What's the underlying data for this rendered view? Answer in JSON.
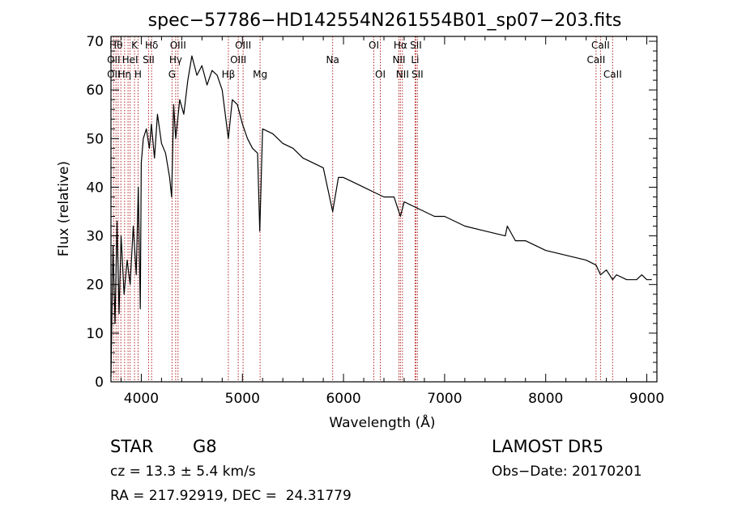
{
  "chart_data": {
    "type": "line",
    "title": "spec−57786−HD142554N261554B01_sp07−203.fits",
    "xlabel": "Wavelength (Å)",
    "ylabel": "Flux (relative)",
    "xlim": [
      3700,
      9100
    ],
    "ylim": [
      0,
      71
    ],
    "x_ticks": [
      4000,
      5000,
      6000,
      7000,
      8000,
      9000
    ],
    "x_tick_labels": [
      "4000",
      "5000",
      "6000",
      "7000",
      "8000",
      "9000"
    ],
    "y_ticks": [
      0,
      10,
      20,
      30,
      40,
      50,
      60,
      70
    ],
    "y_tick_labels": [
      "0",
      "10",
      "20",
      "30",
      "40",
      "50",
      "60",
      "70"
    ],
    "grid": false,
    "line_color": "#000000",
    "marker_color": "#b22222",
    "series": [
      {
        "x": [
          3700,
          3720,
          3740,
          3760,
          3780,
          3800,
          3830,
          3860,
          3890,
          3920,
          3950,
          3970,
          3990,
          4000,
          4020,
          4050,
          4080,
          4100,
          4130,
          4160,
          4200,
          4240,
          4280,
          4300,
          4320,
          4340,
          4380,
          4420,
          4460,
          4500,
          4550,
          4600,
          4650,
          4700,
          4750,
          4800,
          4861,
          4900,
          4950,
          5000,
          5050,
          5100,
          5150,
          5172,
          5200,
          5300,
          5400,
          5500,
          5600,
          5700,
          5800,
          5893,
          5950,
          6000,
          6100,
          6200,
          6300,
          6400,
          6500,
          6563,
          6600,
          6700,
          6800,
          6900,
          7000,
          7200,
          7400,
          7600,
          7620,
          7700,
          7800,
          8000,
          8200,
          8400,
          8498,
          8542,
          8600,
          8662,
          8700,
          8800,
          8900,
          8950,
          9000,
          9050
        ],
        "y": [
          1,
          28,
          12,
          33,
          14,
          30,
          18,
          25,
          20,
          32,
          22,
          40,
          15,
          45,
          50,
          52,
          48,
          53,
          46,
          55,
          49,
          47,
          42,
          38,
          57,
          50,
          58,
          55,
          62,
          67,
          63,
          65,
          61,
          64,
          63,
          60,
          50,
          58,
          57,
          53,
          50,
          48,
          47,
          31,
          52,
          51,
          49,
          48,
          46,
          45,
          44,
          35,
          42,
          42,
          41,
          40,
          39,
          38,
          38,
          34,
          37,
          36,
          35,
          34,
          34,
          32,
          31,
          30,
          32,
          29,
          29,
          27,
          26,
          25,
          24,
          22,
          23,
          21,
          22,
          21,
          21,
          22,
          21,
          21
        ]
      }
    ],
    "lines": [
      {
        "wave": 3727,
        "label": "OII"
      },
      {
        "wave": 3750,
        "label": "Hθ"
      },
      {
        "wave": 3771,
        "label": "Hη"
      },
      {
        "wave": 3798,
        "label": "Hθ"
      },
      {
        "wave": 3835,
        "label": "Hη"
      },
      {
        "wave": 3869,
        "label": "OIII"
      },
      {
        "wave": 3889,
        "label": "HeI"
      },
      {
        "wave": 3933,
        "label": "K"
      },
      {
        "wave": 3968,
        "label": "H"
      },
      {
        "wave": 4072,
        "label": "SII"
      },
      {
        "wave": 4102,
        "label": "Hδ"
      },
      {
        "wave": 4304,
        "label": "G"
      },
      {
        "wave": 4340,
        "label": "Hγ"
      },
      {
        "wave": 4363,
        "label": "OIII"
      },
      {
        "wave": 4861,
        "label": "Hβ"
      },
      {
        "wave": 4959,
        "label": "OIII"
      },
      {
        "wave": 5007,
        "label": "OIII"
      },
      {
        "wave": 5175,
        "label": "Mg"
      },
      {
        "wave": 5893,
        "label": "Na"
      },
      {
        "wave": 6300,
        "label": "OI"
      },
      {
        "wave": 6364,
        "label": "OI"
      },
      {
        "wave": 6548,
        "label": "NII"
      },
      {
        "wave": 6563,
        "label": "Hα"
      },
      {
        "wave": 6583,
        "label": "NII"
      },
      {
        "wave": 6708,
        "label": "Li"
      },
      {
        "wave": 6716,
        "label": "SII"
      },
      {
        "wave": 6731,
        "label": "SII"
      },
      {
        "wave": 8498,
        "label": "CaII"
      },
      {
        "wave": 8542,
        "label": "CaII"
      },
      {
        "wave": 8662,
        "label": "CaII"
      }
    ],
    "line_label_rows": [
      {
        "text": "Hθ",
        "wave": 3750,
        "row": 0
      },
      {
        "text": "K",
        "wave": 3933,
        "row": 0
      },
      {
        "text": "Hδ",
        "wave": 4102,
        "row": 0
      },
      {
        "text": "OIII",
        "wave": 4363,
        "row": 0
      },
      {
        "text": "OIII",
        "wave": 5007,
        "row": 0
      },
      {
        "text": "OI",
        "wave": 6300,
        "row": 0
      },
      {
        "text": "Hα",
        "wave": 6563,
        "row": 0
      },
      {
        "text": "SII",
        "wave": 6716,
        "row": 0
      },
      {
        "text": "CaII",
        "wave": 8542,
        "row": 0
      },
      {
        "text": "OII",
        "wave": 3727,
        "row": 1
      },
      {
        "text": "HeI",
        "wave": 3889,
        "row": 1
      },
      {
        "text": "SII",
        "wave": 4072,
        "row": 1
      },
      {
        "text": "Hγ",
        "wave": 4340,
        "row": 1
      },
      {
        "text": "OIII",
        "wave": 4959,
        "row": 1
      },
      {
        "text": "Na",
        "wave": 5893,
        "row": 1
      },
      {
        "text": "NII",
        "wave": 6548,
        "row": 1
      },
      {
        "text": "Li",
        "wave": 6708,
        "row": 1
      },
      {
        "text": "CaII",
        "wave": 8498,
        "row": 1
      },
      {
        "text": "OII",
        "wave": 3727,
        "row": 2
      },
      {
        "text": "Hη",
        "wave": 3835,
        "row": 2
      },
      {
        "text": "H",
        "wave": 3968,
        "row": 2
      },
      {
        "text": "G",
        "wave": 4304,
        "row": 2
      },
      {
        "text": "Hβ",
        "wave": 4861,
        "row": 2
      },
      {
        "text": "Mg",
        "wave": 5175,
        "row": 2
      },
      {
        "text": "OI",
        "wave": 6364,
        "row": 2
      },
      {
        "text": "NII",
        "wave": 6583,
        "row": 2
      },
      {
        "text": "SII",
        "wave": 6731,
        "row": 2
      },
      {
        "text": "CaII",
        "wave": 8662,
        "row": 2
      }
    ]
  },
  "info": {
    "class_label": "STAR",
    "subclass": "G8",
    "cz": "cz = 13.3 ± 5.4 km/s",
    "radec": "RA = 217.92919, DEC =  24.31779",
    "survey": "LAMOST DR5",
    "obsdate": "Obs−Date: 20170201"
  }
}
